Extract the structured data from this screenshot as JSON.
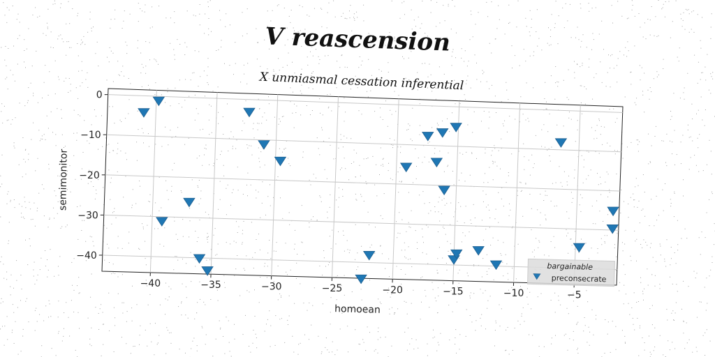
{
  "chart_data": {
    "type": "scatter",
    "title": "V reascension",
    "subtitle": "X unmiasmal cessation inferential",
    "xlabel": "homoean",
    "ylabel": "semimonitor",
    "xlim": [
      -44,
      -1.5
    ],
    "ylim": [
      -44,
      1.5
    ],
    "xticks": [
      -40,
      -35,
      -30,
      -25,
      -20,
      -15,
      -10,
      -5
    ],
    "yticks": [
      0,
      -10,
      -20,
      -30,
      -40
    ],
    "grid": true,
    "legend": {
      "title": "bargainable",
      "placement": "bottom-right"
    },
    "series": [
      {
        "name": "preconsecrate",
        "marker": "triangle-down",
        "color": "#1f77b4",
        "x": [
          -41,
          -39.8,
          -39.2,
          -37,
          -36,
          -35.3,
          -32.3,
          -31,
          -29.6,
          -22.6,
          -22,
          -19.2,
          -17.5,
          -16.7,
          -16.3,
          -16,
          -15.2,
          -15,
          -14.8,
          -13,
          -11.5,
          -6.5,
          -4.7,
          -2,
          -2
        ],
        "y": [
          -4,
          -1,
          -31,
          -26,
          -40,
          -43,
          -3,
          -11,
          -15,
          -44,
          -38,
          -15.5,
          -7.5,
          -14,
          -6.5,
          -21,
          -5,
          -38.5,
          -37,
          -36,
          -39.5,
          -8,
          -34.5,
          -25,
          -29.5
        ]
      }
    ]
  }
}
